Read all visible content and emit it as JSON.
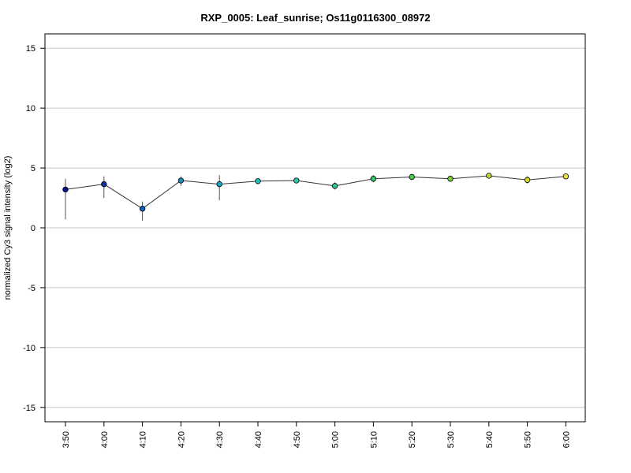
{
  "chart_data": {
    "type": "line",
    "title": "RXP_0005: Leaf_sunrise; Os11g0116300_08972",
    "xlabel": "",
    "ylabel": "normalized Cy3 signal intensity (log2)",
    "ylim": [
      -16.2,
      16.2
    ],
    "yticks": [
      15,
      10,
      5,
      0,
      -5,
      -10,
      -15
    ],
    "ytick_labels": [
      "15",
      "10",
      "5",
      "0",
      "-5",
      "-10",
      "-15"
    ],
    "grid": true,
    "categories": [
      "3:50",
      "4:00",
      "4:10",
      "4:20",
      "4:30",
      "4:40",
      "4:50",
      "5:00",
      "5:10",
      "5:20",
      "5:30",
      "5:40",
      "5:50",
      "6:00"
    ],
    "series": [
      {
        "values": [
          3.2,
          3.65,
          1.6,
          3.95,
          3.65,
          3.9,
          3.95,
          3.5,
          4.1,
          4.25,
          4.1,
          4.35,
          4.0,
          4.3
        ],
        "error_low": [
          0.7,
          2.5,
          0.6,
          3.5,
          2.3,
          3.75,
          3.75,
          3.2,
          3.8,
          4.1,
          3.95,
          4.2,
          3.7,
          4.15
        ],
        "error_high": [
          4.1,
          4.3,
          2.2,
          4.3,
          4.4,
          4.05,
          4.15,
          3.8,
          4.4,
          4.4,
          4.25,
          4.5,
          4.3,
          4.45
        ],
        "point_colors": [
          "#0a0f8c",
          "#1030a8",
          "#1560b8",
          "#1a8cc4",
          "#18a8c0",
          "#20c0c0",
          "#28c8a8",
          "#30c890",
          "#38c870",
          "#48c850",
          "#80d040",
          "#b8d830",
          "#d8d828",
          "#e8e040"
        ]
      }
    ]
  }
}
